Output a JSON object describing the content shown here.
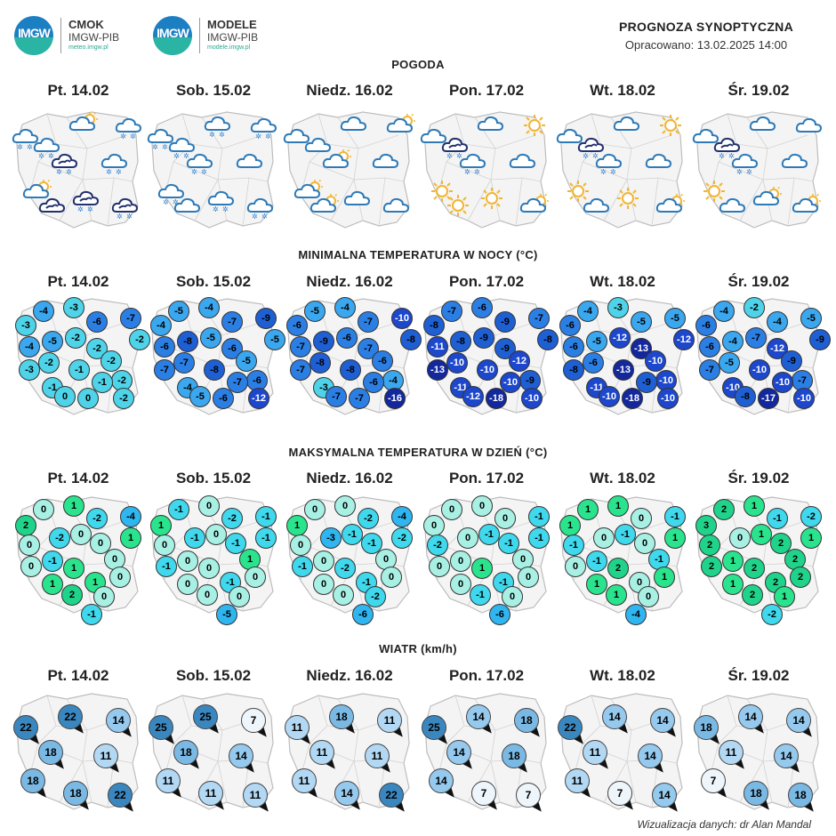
{
  "header": {
    "logo1": {
      "mark": "IMGW",
      "line1": "CMOK",
      "line2": "IMGW-PIB",
      "line3": "meteo.imgw.pl"
    },
    "logo2": {
      "mark": "IMGW",
      "line1": "MODELE",
      "line2": "IMGW-PIB",
      "line3": "modele.imgw.pl"
    },
    "title": "PROGNOZA SYNOPTYCZNA",
    "issued": "Opracowano: 13.02.2025 14:00"
  },
  "days": [
    "Pt. 14.02",
    "Sob. 15.02",
    "Niedz. 16.02",
    "Pon. 17.02",
    "Wt. 18.02",
    "Śr. 19.02"
  ],
  "sections": {
    "weather": "POGODA",
    "tmin": "MINIMALNA TEMPERATURA W NOCY (°C)",
    "tmax": "MAKSYMALNA TEMPERATURA W DZIEŃ (°C)",
    "wind": "WIATR (km/h)"
  },
  "weather_icons": [
    [
      "cloud-snow",
      "cloud-snow",
      "sun-cloud",
      "cloud-snow",
      "cloud-dark-snow",
      "cloud-snow",
      "sun-cloud",
      "cloud-dark-snow",
      "cloud-dark-snow",
      "cloud-dark"
    ],
    [
      "cloud-snow",
      "cloud-snow",
      "cloud-snow",
      "cloud-snow",
      "cloud-snow",
      "cloud",
      "cloud-snow",
      "cloud-snow",
      "cloud-snow",
      "cloud"
    ],
    [
      "cloud",
      "cloud",
      "cloud",
      "sun-cloud",
      "sun-cloud",
      "cloud",
      "sun-cloud",
      "cloud",
      "cloud",
      "sun-cloud"
    ],
    [
      "cloud",
      "cloud-dark-snow",
      "cloud",
      "sun",
      "cloud-snow",
      "cloud",
      "sun",
      "sun",
      "sun-cloud",
      "sun"
    ],
    [
      "cloud",
      "cloud-dark-snow",
      "cloud",
      "sun",
      "cloud-snow",
      "cloud",
      "sun",
      "sun",
      "sun-cloud",
      "cloud"
    ],
    [
      "cloud",
      "cloud-dark-snow",
      "cloud",
      "cloud",
      "cloud-snow",
      "cloud",
      "sun",
      "sun-cloud",
      "sun-cloud",
      "cloud"
    ]
  ],
  "tmin": [
    [
      -4,
      -3,
      -3,
      -6,
      -7,
      -2,
      -4,
      -5,
      -2,
      -3,
      -2,
      -2,
      -2,
      -1,
      -2,
      -1,
      -1,
      0,
      0,
      -2
    ],
    [
      -5,
      -4,
      -4,
      -7,
      -9,
      -5,
      -6,
      -8,
      -5,
      -7,
      -7,
      -6,
      -5,
      -8,
      -6,
      -7,
      -4,
      -5,
      -6,
      -12
    ],
    [
      -5,
      -4,
      -6,
      -7,
      -10,
      -8,
      -7,
      -9,
      -6,
      -7,
      -8,
      -7,
      -6,
      -8,
      -4,
      -6,
      -3,
      -7,
      -7,
      -16
    ],
    [
      -7,
      -6,
      -8,
      -9,
      -7,
      -8,
      -11,
      -8,
      -9,
      -13,
      -10,
      -9,
      -12,
      -10,
      -9,
      -10,
      -11,
      -12,
      -18,
      -10
    ],
    [
      -4,
      -3,
      -6,
      -5,
      -5,
      -12,
      -6,
      -5,
      -12,
      -8,
      -6,
      -13,
      -10,
      -13,
      -10,
      -9,
      -11,
      -10,
      -18,
      -10
    ],
    [
      -4,
      -2,
      -6,
      -4,
      -5,
      -9,
      -6,
      -4,
      -7,
      -7,
      -5,
      -12,
      -9,
      -10,
      -7,
      -10,
      -10,
      -8,
      -17,
      -10
    ]
  ],
  "tmax": [
    [
      0,
      1,
      2,
      -2,
      -4,
      1,
      0,
      -2,
      0,
      0,
      -1,
      0,
      0,
      1,
      0,
      1,
      1,
      2,
      -1,
      0
    ],
    [
      -1,
      0,
      1,
      -2,
      -1,
      -1,
      0,
      -1,
      0,
      -1,
      0,
      -1,
      1,
      0,
      0,
      -1,
      0,
      0,
      -5,
      0
    ],
    [
      0,
      0,
      1,
      -2,
      -4,
      -2,
      0,
      -3,
      -1,
      -1,
      0,
      -1,
      0,
      -2,
      0,
      -1,
      0,
      0,
      -6,
      -2
    ],
    [
      0,
      0,
      0,
      0,
      -1,
      -1,
      -2,
      0,
      -1,
      0,
      0,
      -1,
      0,
      1,
      0,
      -1,
      0,
      -1,
      -6,
      0
    ],
    [
      1,
      1,
      1,
      0,
      -1,
      1,
      -1,
      0,
      -1,
      0,
      -1,
      0,
      -1,
      2,
      1,
      0,
      1,
      1,
      -4,
      0
    ],
    [
      2,
      1,
      3,
      -1,
      -2,
      1,
      2,
      0,
      1,
      2,
      1,
      2,
      2,
      2,
      2,
      2,
      1,
      2,
      -2,
      1
    ]
  ],
  "wind": [
    [
      22,
      22,
      14,
      18,
      11,
      18,
      18,
      22
    ],
    [
      25,
      25,
      7,
      18,
      14,
      11,
      11,
      11
    ],
    [
      11,
      18,
      11,
      11,
      11,
      11,
      14,
      22
    ],
    [
      25,
      14,
      18,
      14,
      18,
      14,
      7,
      7
    ],
    [
      22,
      14,
      14,
      11,
      14,
      11,
      7,
      14
    ],
    [
      18,
      14,
      14,
      11,
      14,
      7,
      18,
      18
    ]
  ],
  "credit": "Wizualizacja danych: dr Alan Mandal"
}
